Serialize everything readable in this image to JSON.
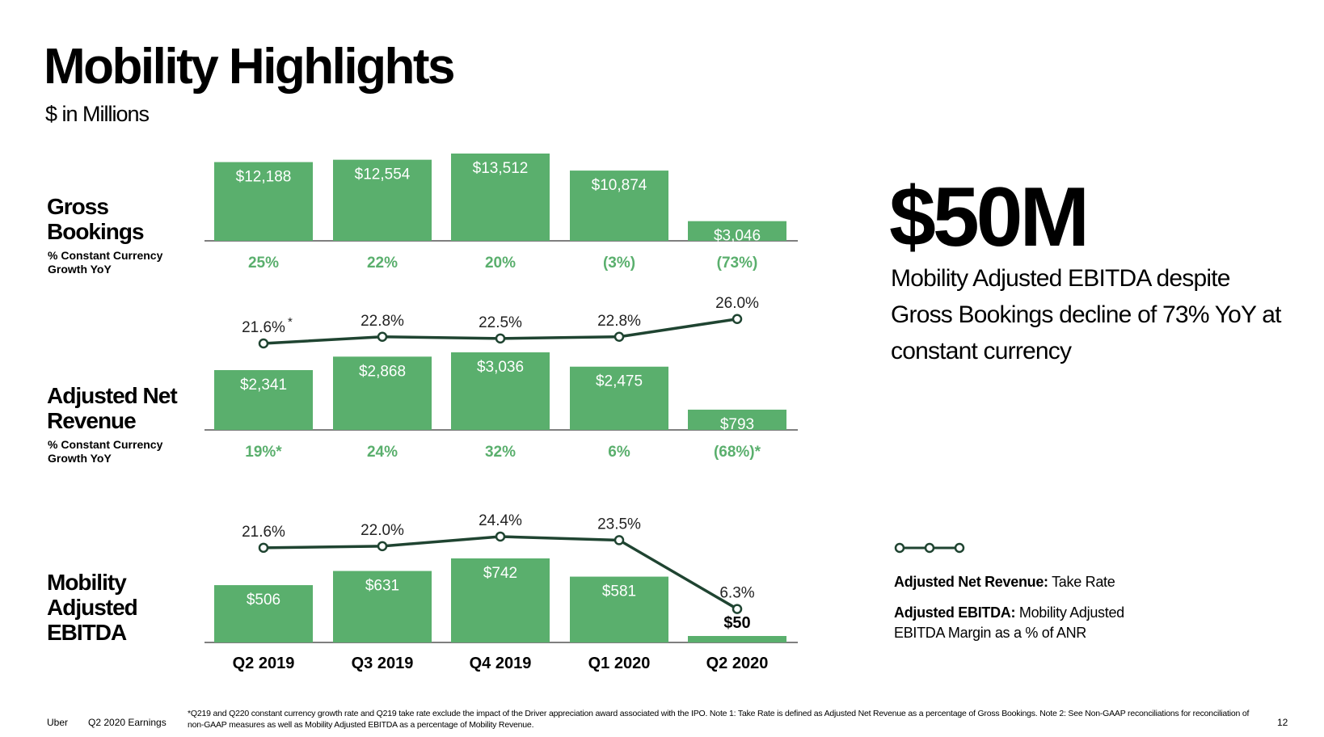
{
  "title": "Mobility Highlights",
  "subtitle": "$ in Millions",
  "sections": {
    "gross_bookings": {
      "label": "Gross\nBookings",
      "sub": "% Constant Currency\nGrowth YoY"
    },
    "anr": {
      "label": "Adjusted Net\nRevenue",
      "sub": "% Constant Currency\nGrowth YoY"
    },
    "ebitda": {
      "label": "Mobility\nAdjusted\nEBITDA"
    }
  },
  "highlight": {
    "value": "$50M",
    "caption": "Mobility Adjusted EBITDA despite Gross Bookings decline of 73% YoY at constant currency"
  },
  "legend": {
    "anr_bold": "Adjusted Net Revenue:",
    "anr_rest": " Take Rate",
    "ebitda_bold": "Adjusted EBITDA:",
    "ebitda_rest": " Mobility Adjusted EBITDA Margin as a % of ANR"
  },
  "footer": {
    "brand": "Uber",
    "report": "Q2 2020 Earnings",
    "footnote": "*Q219 and Q220 constant currency growth rate and Q219 take rate exclude the impact of the Driver appreciation award associated with the IPO. Note 1: Take Rate is defined as Adjusted Net Revenue as a percentage of Gross Bookings. Note 2: See Non-GAAP reconciliations for reconciliation of non-GAAP measures as well as Mobility Adjusted EBITDA as a percentage of Mobility Revenue.",
    "page": "12"
  },
  "colors": {
    "bar": "#5aaf6d",
    "line": "#1f4431",
    "growth": "#5aaf6d",
    "text": "#000000"
  },
  "chart_data": [
    {
      "type": "bar",
      "title": "Gross Bookings",
      "categories": [
        "Q2 2019",
        "Q3 2019",
        "Q4 2019",
        "Q1 2020",
        "Q2 2020"
      ],
      "values": [
        12188,
        12554,
        13512,
        10874,
        3046
      ],
      "value_labels": [
        "$12,188",
        "$12,554",
        "$13,512",
        "$10,874",
        "$3,046"
      ],
      "growth_labels": [
        "25%",
        "22%",
        "20%",
        "(3%)",
        "(73%)"
      ],
      "ylim": [
        0,
        13512
      ]
    },
    {
      "type": "bar+line",
      "title": "Adjusted Net Revenue",
      "categories": [
        "Q2 2019",
        "Q3 2019",
        "Q4 2019",
        "Q1 2020",
        "Q2 2020"
      ],
      "values": [
        2341,
        2868,
        3036,
        2475,
        793
      ],
      "value_labels": [
        "$2,341",
        "$2,868",
        "$3,036",
        "$2,475",
        "$793"
      ],
      "growth_labels": [
        "19%*",
        "24%",
        "32%",
        "6%",
        "(68%)*"
      ],
      "ylim": [
        0,
        3036
      ],
      "line": {
        "name": "Take Rate",
        "values": [
          21.6,
          22.8,
          22.5,
          22.8,
          26.0
        ],
        "labels": [
          "21.6%",
          "22.8%",
          "22.5%",
          "22.8%",
          "26.0%"
        ],
        "first_label_note": "*",
        "ylim": [
          20,
          28
        ]
      }
    },
    {
      "type": "bar+line",
      "title": "Mobility Adjusted EBITDA",
      "categories": [
        "Q2 2019",
        "Q3 2019",
        "Q4 2019",
        "Q1 2020",
        "Q2 2020"
      ],
      "values": [
        506,
        631,
        742,
        581,
        50
      ],
      "value_labels": [
        "$506",
        "$631",
        "$742",
        "$581",
        "$50"
      ],
      "ylim": [
        0,
        742
      ],
      "line": {
        "name": "EBITDA Margin as a % of ANR",
        "values": [
          21.6,
          22.0,
          24.4,
          23.5,
          6.3
        ],
        "labels": [
          "21.6%",
          "22.0%",
          "24.4%",
          "23.5%",
          "6.3%"
        ],
        "ylim": [
          5,
          25
        ]
      }
    }
  ]
}
